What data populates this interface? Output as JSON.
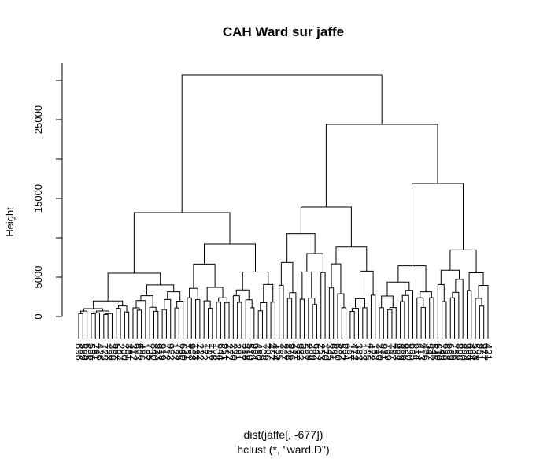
{
  "chart_data": {
    "type": "dendrogram",
    "title": "CAH Ward sur jaffe",
    "ylabel": "Height",
    "xlabel": "dist(jaffe[, -677])",
    "sub": "hclust (*, \"ward.D\")",
    "ylim": [
      0,
      30000
    ],
    "yticks": [
      0,
      5000,
      15000,
      25000
    ],
    "ytick_labels": [
      "0",
      "5000",
      "15000",
      "25000"
    ],
    "root_height": 30700,
    "merges": [
      {
        "left": 0,
        "right": 1,
        "height": 30700
      },
      {
        "left": 0,
        "right": 1,
        "height": 13200
      },
      {
        "left": 1,
        "right": 0,
        "height": 24400
      },
      {
        "left": 0,
        "right": 1,
        "height": 5500
      },
      {
        "left": 1,
        "right": 0,
        "height": 9200
      },
      {
        "left": 0,
        "right": 1,
        "height": 13900
      },
      {
        "left": 1,
        "right": 0,
        "height": 16900
      },
      {
        "left": 0,
        "right": 1,
        "height": 9600
      }
    ],
    "clusters": [
      {
        "height": 5500,
        "leaves": 26
      },
      {
        "height": 9200,
        "leaves": 22
      },
      {
        "height": 13900,
        "leaves": 24
      },
      {
        "height": 16900,
        "leaves": 27
      }
    ],
    "leaf_count": 99,
    "leaf_label_color": "#000000"
  }
}
